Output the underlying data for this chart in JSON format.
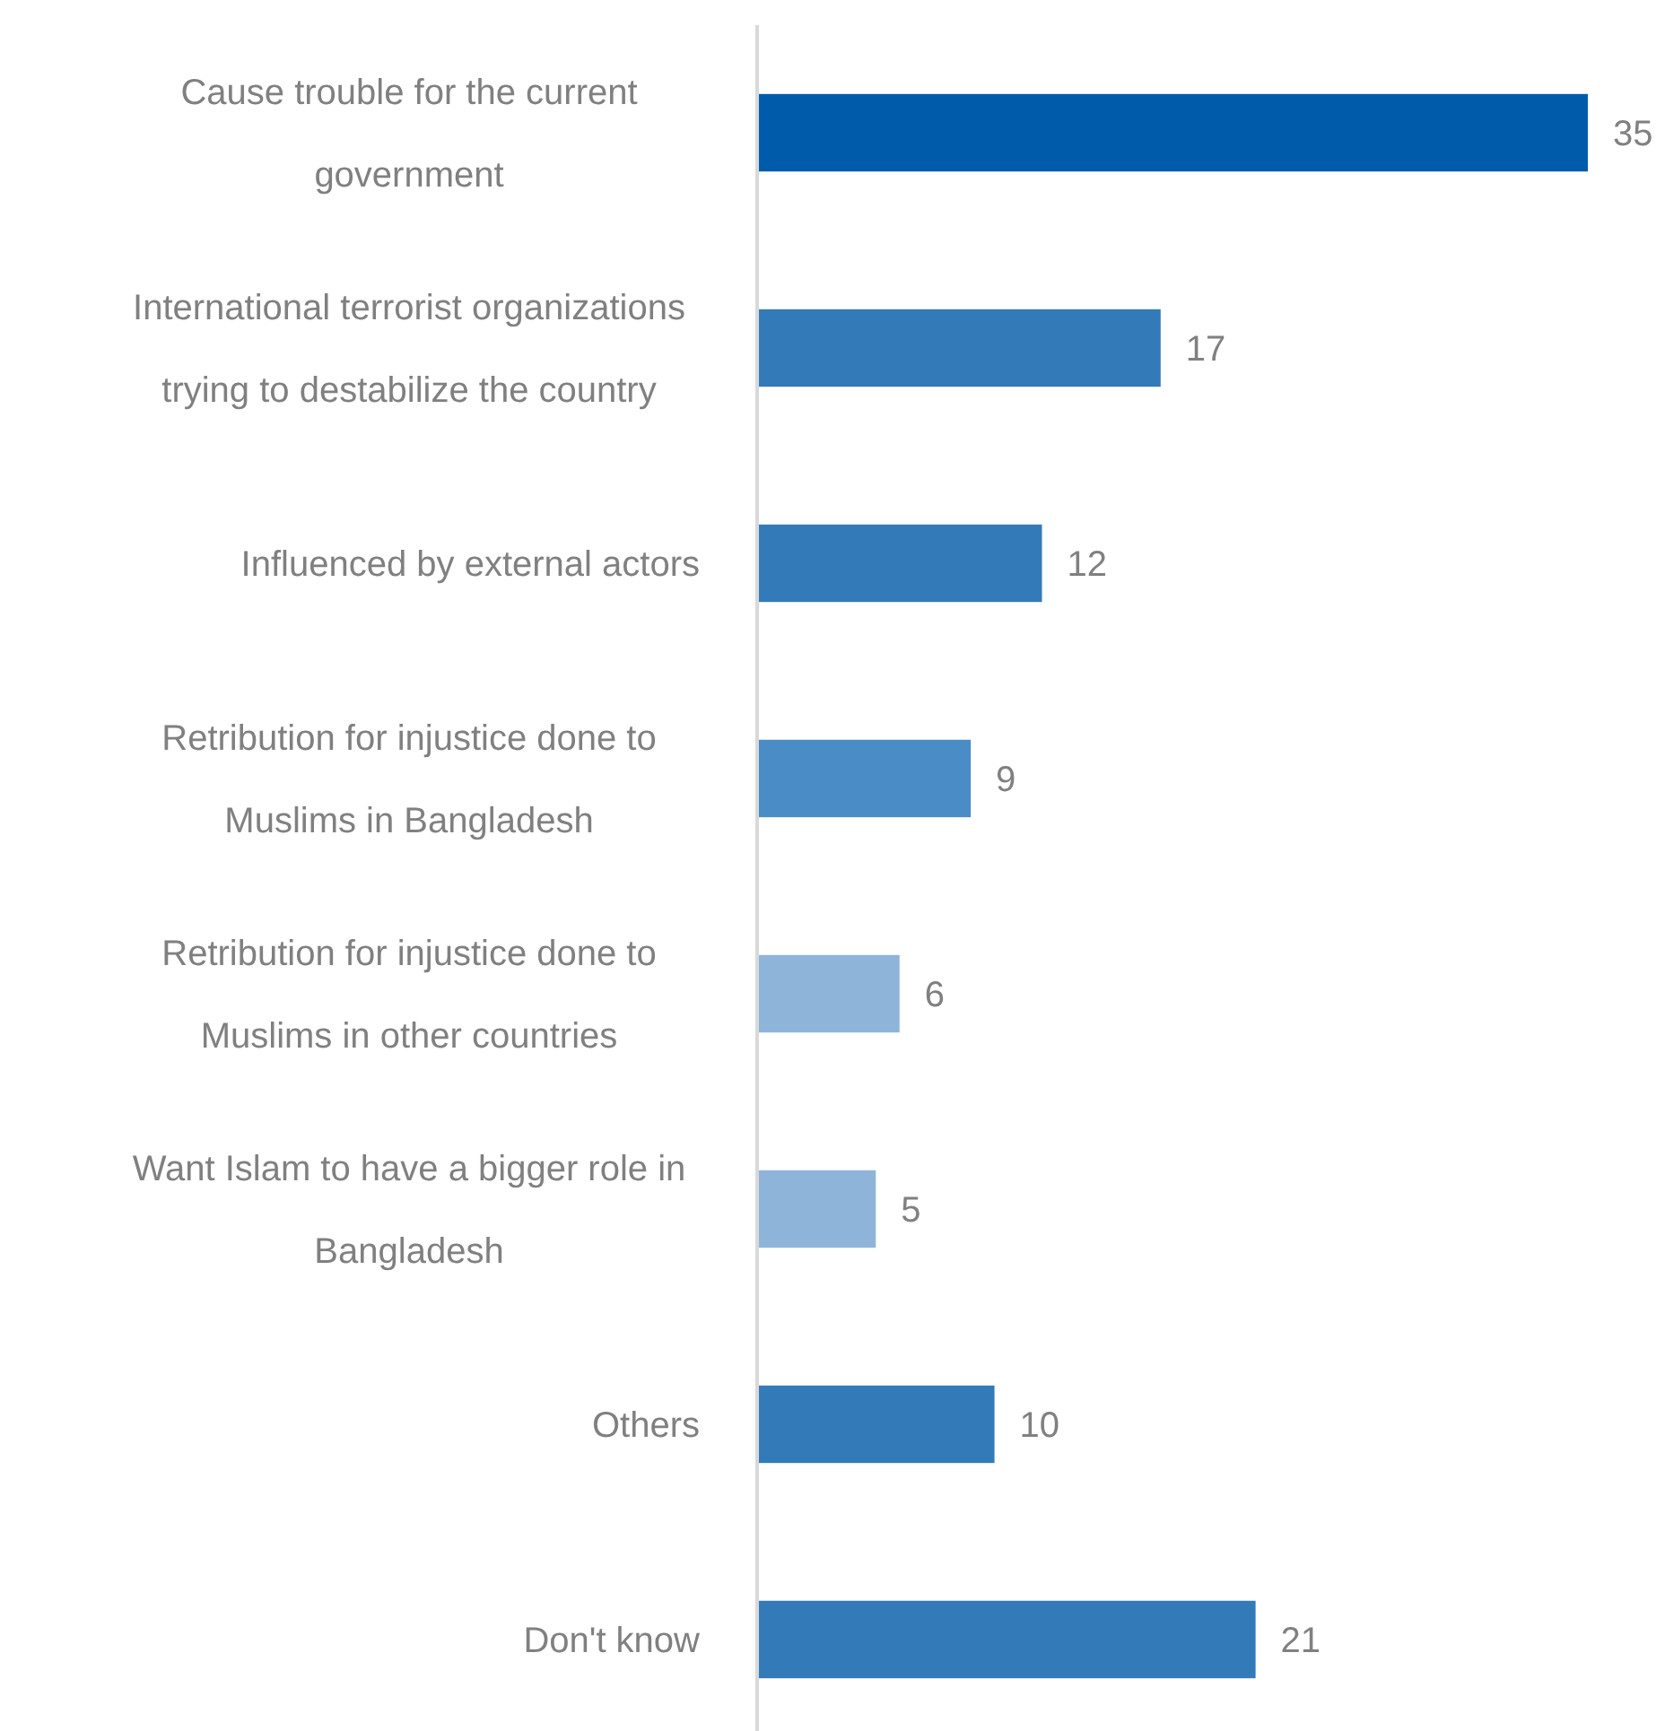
{
  "chart_data": {
    "type": "bar",
    "orientation": "horizontal",
    "categories": [
      "Cause trouble for the current government",
      "International terrorist organizations trying to destabilize the country",
      "Influenced by external actors",
      "Retribution for injustice done to Muslims in Bangladesh",
      "Retribution for injustice done to Muslims in other countries",
      "Want Islam to have a bigger role in Bangladesh",
      "Others",
      "Don't know"
    ],
    "values": [
      35,
      17,
      12,
      9,
      6,
      5,
      10,
      21
    ],
    "colors": [
      "#005bab",
      "#337ab9",
      "#337ab9",
      "#4a8cc5",
      "#8fb4da",
      "#8fb4da",
      "#337ab9",
      "#337ab9"
    ],
    "data_labels": true
  }
}
